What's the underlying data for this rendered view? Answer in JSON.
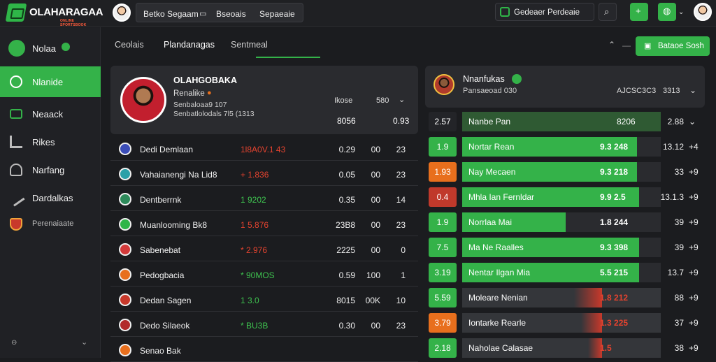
{
  "brand": {
    "name": "OLAHARAGAA",
    "tagline": "ONLINE SPORTSBOOK"
  },
  "search": {
    "label1": "Betko Segaam",
    "label2": "Bseoais",
    "label3": "Sepaeaie"
  },
  "header": {
    "deposit": "Gedeaer Perdeaie",
    "colors": {
      "accent": "#34b249"
    }
  },
  "sidebar": {
    "items": [
      {
        "label": "Nolaa",
        "icon": "live-icon",
        "badge": "•"
      },
      {
        "label": "Nlanide",
        "icon": "football-icon",
        "active": true
      },
      {
        "label": "Neaack",
        "icon": "card-icon"
      },
      {
        "label": "Rikes",
        "icon": "chart-icon"
      },
      {
        "label": "Narfang",
        "icon": "headset-icon"
      },
      {
        "label": "Dardalkas",
        "icon": "pen-icon"
      },
      {
        "label": "Perenaiaate",
        "icon": "shield-icon"
      }
    ]
  },
  "tabs": [
    "Ceolais",
    "Plandanagas",
    "Sentmeal"
  ],
  "tabs_action": "Bataoe Sosh",
  "profile": {
    "name": "OLAHGOBAKA",
    "sub1": "Renalike",
    "sub2": "Senbaloaa9 107",
    "sub3": "Senbatlolodals 7l5 (1313",
    "h1": "Ikose",
    "h2": "580",
    "v1": "8056",
    "v2": "0.93"
  },
  "rows": [
    {
      "team": "Dedi Demlaan",
      "odds": "1l8A0V.1 43",
      "c1": "0.29",
      "c2": "00",
      "c3": "23",
      "odds_color": "red"
    },
    {
      "team": "Vahaianengi Na Lid8",
      "odds": "+ 1.836",
      "c1": "0.05",
      "c2": "00",
      "c3": "23",
      "odds_color": "red"
    },
    {
      "team": "Dentberrnk",
      "odds": "1 9202",
      "c1": "0.35",
      "c2": "00",
      "c3": "14",
      "odds_color": "green"
    },
    {
      "team": "Muanlooming Bk8",
      "odds": "1 5.876",
      "c1": "23B8",
      "c2": "00",
      "c3": "23",
      "odds_color": "red"
    },
    {
      "team": "Sabenebat",
      "odds": "* 2.976",
      "c1": "2225",
      "c2": "00",
      "c3": "0",
      "odds_color": "red"
    },
    {
      "team": "Pedogbacia",
      "odds": "* 90MOS",
      "c1": "0.59",
      "c2": "100",
      "c3": "1",
      "odds_color": "green"
    },
    {
      "team": "Dedan Sagen",
      "odds": "1 3.0",
      "c1": "8015",
      "c2": "00K",
      "c3": "10",
      "odds_color": "green"
    },
    {
      "team": "Dedo Silaeok",
      "odds": "* BU3B",
      "c1": "0.30",
      "c2": "00",
      "c3": "23",
      "odds_color": "green"
    },
    {
      "team": "Senao Bak",
      "odds": "",
      "c1": "",
      "c2": "",
      "c3": "",
      "odds_color": "green"
    }
  ],
  "right": {
    "title": "Nnanfukas",
    "sub": "Pansaeoad 030",
    "metric": "AJCSC3C3",
    "metric2": "3313",
    "head": {
      "num": "2.57",
      "label": "Nanbe Pan",
      "val": "8206",
      "rv": "2.88"
    },
    "rows": [
      {
        "num": "1.9",
        "numcolor": "#34b249",
        "label": "Nortar Rean",
        "bval": "9.3 248",
        "fill": 0.88,
        "barcolor": "#34b249",
        "rv": "13.12",
        "chk": "+4"
      },
      {
        "num": "1.93",
        "numcolor": "#e86f1d",
        "label": "Nay Mecaen",
        "bval": "9.3 218",
        "fill": 0.88,
        "barcolor": "#34b249",
        "rv": "33",
        "chk": "+9"
      },
      {
        "num": "0.4",
        "numcolor": "#c0392b",
        "label": "Mhla Ian Fernldar",
        "bval": "9.9 2.5",
        "fill": 0.89,
        "barcolor": "#34b249",
        "rv": "13.1.3",
        "chk": "+9"
      },
      {
        "num": "1.9",
        "numcolor": "#34b249",
        "label": "Norrlaa Mai",
        "bval": "1.8 244",
        "fill": 0.52,
        "barcolor": "#34b249",
        "rv": "39",
        "chk": "+9"
      },
      {
        "num": "7.5",
        "numcolor": "#34b249",
        "label": "Ma Ne Raalles",
        "bval": "9.3 398",
        "fill": 0.89,
        "barcolor": "#34b249",
        "rv": "39",
        "chk": "+9"
      },
      {
        "num": "3.19",
        "numcolor": "#34b249",
        "label": "Nentar Ilgan Mia",
        "bval": "5.5 215",
        "fill": 0.89,
        "barcolor": "#34b249",
        "rv": "13.7",
        "chk": "+9"
      },
      {
        "num": "5.59",
        "numcolor": "#34b249",
        "label": "Moleare Nenian",
        "bval": "1.8 212",
        "fill": 0.0,
        "barcolor": "#e4432f",
        "rv": "88",
        "chk": "+9"
      },
      {
        "num": "3.79",
        "numcolor": "#e86f1d",
        "label": "Iontarke Rearle",
        "bval": "1.3 225",
        "fill": 0.0,
        "barcolor": "#e4432f",
        "rv": "37",
        "chk": "+9"
      },
      {
        "num": "2.18",
        "numcolor": "#34b249",
        "label": "Naholae Calasae",
        "bval": "1.5",
        "fill": 0.0,
        "barcolor": "#e4432f",
        "rv": "38",
        "chk": "+9"
      }
    ]
  }
}
